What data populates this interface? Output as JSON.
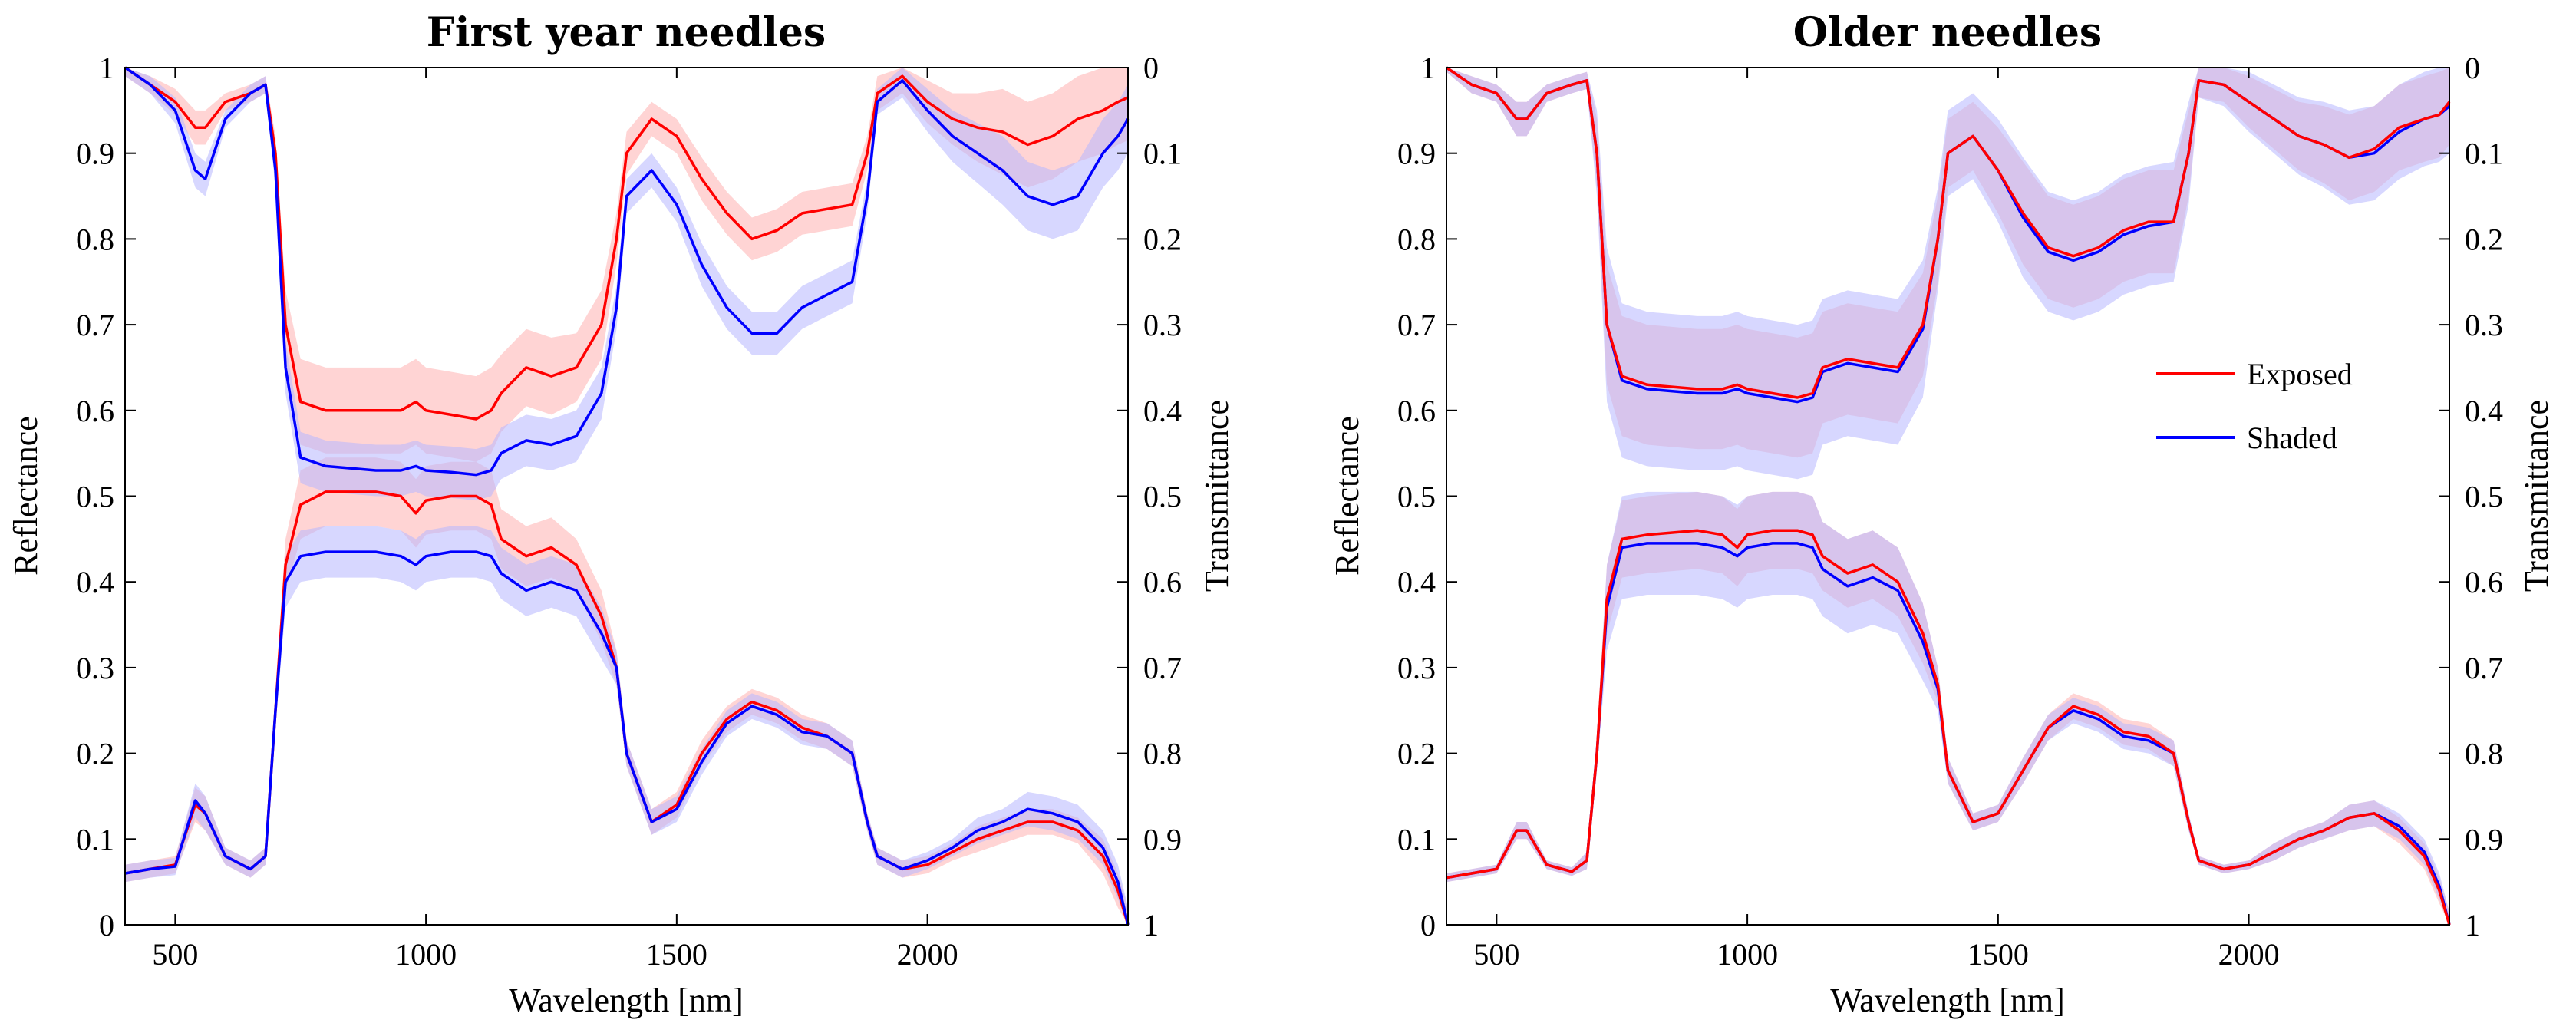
{
  "colors": {
    "exposed_line": "#ff0000",
    "shaded_line": "#0000ff",
    "exposed_band": "#ffb0b0",
    "shaded_band": "#b6b6ff",
    "overlap_band": "#d8a6cc"
  },
  "legend": {
    "exposed": "Exposed",
    "shaded": "Shaded"
  },
  "chart_data": [
    {
      "type": "line",
      "title": "First year needles",
      "xlabel": "Wavelength [nm]",
      "ylabel": "Reflectance",
      "y2label": "Transmittance",
      "xlim": [
        400,
        2400
      ],
      "ylim": [
        0,
        1
      ],
      "y2lim": [
        1,
        0
      ],
      "xticks": [
        "500",
        "1000",
        "1500",
        "2000"
      ],
      "yticks": [
        "0",
        "0.1",
        "0.2",
        "0.3",
        "0.4",
        "0.5",
        "0.6",
        "0.7",
        "0.8",
        "0.9",
        "1"
      ],
      "y2ticks": [
        "1",
        "0.9",
        "0.8",
        "0.7",
        "0.6",
        "0.5",
        "0.4",
        "0.3",
        "0.2",
        "0.1",
        "0"
      ],
      "x": [
        400,
        450,
        500,
        540,
        560,
        600,
        650,
        680,
        700,
        720,
        750,
        800,
        900,
        950,
        980,
        1000,
        1050,
        1100,
        1130,
        1150,
        1200,
        1250,
        1300,
        1350,
        1380,
        1400,
        1450,
        1500,
        1550,
        1600,
        1650,
        1700,
        1750,
        1800,
        1850,
        1880,
        1900,
        1950,
        2000,
        2050,
        2100,
        2150,
        2200,
        2250,
        2300,
        2350,
        2380,
        2400
      ],
      "series": [
        {
          "name": "Exposed reflectance",
          "values": [
            0.06,
            0.065,
            0.07,
            0.14,
            0.13,
            0.08,
            0.065,
            0.08,
            0.25,
            0.42,
            0.49,
            0.505,
            0.505,
            0.5,
            0.48,
            0.495,
            0.5,
            0.5,
            0.49,
            0.45,
            0.43,
            0.44,
            0.42,
            0.36,
            0.3,
            0.2,
            0.12,
            0.14,
            0.2,
            0.24,
            0.26,
            0.25,
            0.23,
            0.22,
            0.2,
            0.12,
            0.08,
            0.065,
            0.07,
            0.085,
            0.1,
            0.11,
            0.12,
            0.12,
            0.11,
            0.08,
            0.04,
            0.0
          ],
          "band": [
            0.01,
            0.01,
            0.01,
            0.02,
            0.02,
            0.01,
            0.01,
            0.01,
            0.02,
            0.03,
            0.04,
            0.04,
            0.04,
            0.04,
            0.04,
            0.04,
            0.04,
            0.04,
            0.04,
            0.035,
            0.035,
            0.035,
            0.03,
            0.03,
            0.02,
            0.015,
            0.015,
            0.015,
            0.015,
            0.015,
            0.015,
            0.015,
            0.015,
            0.015,
            0.015,
            0.01,
            0.01,
            0.01,
            0.01,
            0.01,
            0.015,
            0.015,
            0.015,
            0.015,
            0.015,
            0.02,
            0.02,
            0.02
          ]
        },
        {
          "name": "Shaded reflectance",
          "values": [
            0.06,
            0.065,
            0.068,
            0.145,
            0.13,
            0.08,
            0.065,
            0.08,
            0.25,
            0.4,
            0.43,
            0.435,
            0.435,
            0.43,
            0.42,
            0.43,
            0.435,
            0.435,
            0.43,
            0.41,
            0.39,
            0.4,
            0.39,
            0.34,
            0.3,
            0.2,
            0.12,
            0.135,
            0.19,
            0.235,
            0.255,
            0.245,
            0.225,
            0.22,
            0.2,
            0.12,
            0.08,
            0.065,
            0.075,
            0.09,
            0.11,
            0.12,
            0.135,
            0.13,
            0.12,
            0.09,
            0.05,
            0.0
          ],
          "band": [
            0.01,
            0.01,
            0.01,
            0.02,
            0.02,
            0.01,
            0.01,
            0.01,
            0.02,
            0.03,
            0.03,
            0.03,
            0.03,
            0.03,
            0.03,
            0.03,
            0.03,
            0.03,
            0.03,
            0.03,
            0.03,
            0.03,
            0.03,
            0.03,
            0.02,
            0.015,
            0.015,
            0.015,
            0.015,
            0.015,
            0.015,
            0.015,
            0.015,
            0.015,
            0.015,
            0.01,
            0.01,
            0.01,
            0.01,
            0.01,
            0.015,
            0.015,
            0.02,
            0.02,
            0.02,
            0.02,
            0.02,
            0.02
          ]
        },
        {
          "name": "Exposed transmittance",
          "values": [
            0.0,
            0.02,
            0.04,
            0.07,
            0.07,
            0.04,
            0.03,
            0.02,
            0.1,
            0.3,
            0.39,
            0.4,
            0.4,
            0.4,
            0.39,
            0.4,
            0.405,
            0.41,
            0.4,
            0.38,
            0.35,
            0.36,
            0.35,
            0.3,
            0.2,
            0.1,
            0.06,
            0.08,
            0.13,
            0.17,
            0.2,
            0.19,
            0.17,
            0.165,
            0.16,
            0.1,
            0.03,
            0.01,
            0.04,
            0.06,
            0.07,
            0.075,
            0.09,
            0.08,
            0.06,
            0.05,
            0.04,
            0.035
          ],
          "band": [
            0.01,
            0.01,
            0.015,
            0.02,
            0.02,
            0.01,
            0.01,
            0.01,
            0.02,
            0.04,
            0.05,
            0.05,
            0.05,
            0.05,
            0.05,
            0.05,
            0.05,
            0.05,
            0.05,
            0.045,
            0.045,
            0.045,
            0.04,
            0.04,
            0.03,
            0.025,
            0.02,
            0.02,
            0.025,
            0.025,
            0.025,
            0.025,
            0.025,
            0.025,
            0.025,
            0.02,
            0.02,
            0.02,
            0.025,
            0.03,
            0.04,
            0.05,
            0.05,
            0.05,
            0.05,
            0.05,
            0.05,
            0.05
          ]
        },
        {
          "name": "Shaded transmittance",
          "values": [
            0.0,
            0.02,
            0.05,
            0.12,
            0.13,
            0.06,
            0.03,
            0.02,
            0.12,
            0.35,
            0.455,
            0.465,
            0.47,
            0.47,
            0.465,
            0.47,
            0.472,
            0.475,
            0.47,
            0.45,
            0.435,
            0.44,
            0.43,
            0.38,
            0.28,
            0.15,
            0.12,
            0.16,
            0.23,
            0.28,
            0.31,
            0.31,
            0.28,
            0.265,
            0.25,
            0.15,
            0.04,
            0.015,
            0.05,
            0.08,
            0.1,
            0.12,
            0.15,
            0.16,
            0.15,
            0.1,
            0.08,
            0.06
          ],
          "band": [
            0.01,
            0.01,
            0.015,
            0.02,
            0.02,
            0.01,
            0.01,
            0.01,
            0.02,
            0.03,
            0.03,
            0.03,
            0.03,
            0.03,
            0.03,
            0.03,
            0.03,
            0.03,
            0.03,
            0.03,
            0.03,
            0.03,
            0.03,
            0.03,
            0.025,
            0.02,
            0.02,
            0.02,
            0.025,
            0.025,
            0.025,
            0.025,
            0.025,
            0.025,
            0.025,
            0.02,
            0.015,
            0.02,
            0.025,
            0.03,
            0.035,
            0.04,
            0.04,
            0.04,
            0.04,
            0.04,
            0.04,
            0.04
          ]
        }
      ]
    },
    {
      "type": "line",
      "title": "Older needles",
      "xlabel": "Wavelength [nm]",
      "ylabel": "Reflectance",
      "y2label": "Transmittance",
      "xlim": [
        400,
        2400
      ],
      "ylim": [
        0,
        1
      ],
      "y2lim": [
        1,
        0
      ],
      "xticks": [
        "500",
        "1000",
        "1500",
        "2000"
      ],
      "yticks": [
        "0",
        "0.1",
        "0.2",
        "0.3",
        "0.4",
        "0.5",
        "0.6",
        "0.7",
        "0.8",
        "0.9",
        "1"
      ],
      "y2ticks": [
        "1",
        "0.9",
        "0.8",
        "0.7",
        "0.6",
        "0.5",
        "0.4",
        "0.3",
        "0.2",
        "0.1",
        "0"
      ],
      "x": [
        400,
        450,
        500,
        540,
        560,
        600,
        650,
        680,
        700,
        720,
        750,
        800,
        900,
        950,
        980,
        1000,
        1050,
        1100,
        1130,
        1150,
        1200,
        1250,
        1300,
        1350,
        1380,
        1400,
        1450,
        1500,
        1550,
        1600,
        1650,
        1700,
        1750,
        1800,
        1850,
        1880,
        1900,
        1950,
        2000,
        2050,
        2100,
        2150,
        2200,
        2250,
        2300,
        2350,
        2380,
        2400
      ],
      "series": [
        {
          "name": "Exposed reflectance",
          "values": [
            0.055,
            0.06,
            0.065,
            0.11,
            0.11,
            0.07,
            0.062,
            0.075,
            0.2,
            0.38,
            0.45,
            0.455,
            0.46,
            0.455,
            0.44,
            0.455,
            0.46,
            0.46,
            0.455,
            0.43,
            0.41,
            0.42,
            0.4,
            0.34,
            0.28,
            0.18,
            0.12,
            0.13,
            0.18,
            0.23,
            0.255,
            0.245,
            0.225,
            0.22,
            0.2,
            0.12,
            0.075,
            0.065,
            0.07,
            0.085,
            0.1,
            0.11,
            0.125,
            0.13,
            0.11,
            0.08,
            0.04,
            0.0
          ],
          "band": [
            0.005,
            0.005,
            0.005,
            0.01,
            0.01,
            0.005,
            0.005,
            0.01,
            0.02,
            0.04,
            0.045,
            0.045,
            0.045,
            0.045,
            0.045,
            0.045,
            0.045,
            0.045,
            0.045,
            0.04,
            0.04,
            0.04,
            0.04,
            0.035,
            0.02,
            0.015,
            0.01,
            0.01,
            0.015,
            0.015,
            0.015,
            0.015,
            0.015,
            0.015,
            0.015,
            0.01,
            0.005,
            0.005,
            0.005,
            0.01,
            0.01,
            0.01,
            0.015,
            0.015,
            0.015,
            0.015,
            0.015,
            0.015
          ]
        },
        {
          "name": "Shaded reflectance",
          "values": [
            0.055,
            0.06,
            0.065,
            0.11,
            0.11,
            0.07,
            0.062,
            0.075,
            0.2,
            0.37,
            0.44,
            0.445,
            0.445,
            0.44,
            0.43,
            0.44,
            0.445,
            0.445,
            0.44,
            0.415,
            0.395,
            0.405,
            0.39,
            0.33,
            0.275,
            0.18,
            0.12,
            0.13,
            0.18,
            0.23,
            0.25,
            0.24,
            0.22,
            0.215,
            0.2,
            0.12,
            0.075,
            0.065,
            0.07,
            0.085,
            0.1,
            0.11,
            0.125,
            0.13,
            0.115,
            0.085,
            0.045,
            0.0
          ],
          "band": [
            0.005,
            0.005,
            0.005,
            0.01,
            0.01,
            0.005,
            0.005,
            0.01,
            0.02,
            0.05,
            0.06,
            0.06,
            0.06,
            0.06,
            0.06,
            0.06,
            0.06,
            0.06,
            0.06,
            0.055,
            0.055,
            0.055,
            0.05,
            0.045,
            0.025,
            0.015,
            0.01,
            0.01,
            0.015,
            0.015,
            0.015,
            0.015,
            0.015,
            0.015,
            0.015,
            0.01,
            0.005,
            0.005,
            0.005,
            0.01,
            0.01,
            0.01,
            0.015,
            0.015,
            0.015,
            0.015,
            0.015,
            0.015
          ]
        },
        {
          "name": "Exposed transmittance",
          "values": [
            0.0,
            0.02,
            0.03,
            0.06,
            0.06,
            0.03,
            0.02,
            0.015,
            0.1,
            0.3,
            0.36,
            0.37,
            0.375,
            0.375,
            0.37,
            0.375,
            0.38,
            0.385,
            0.38,
            0.35,
            0.34,
            0.345,
            0.35,
            0.3,
            0.2,
            0.1,
            0.08,
            0.12,
            0.17,
            0.21,
            0.22,
            0.21,
            0.19,
            0.18,
            0.18,
            0.1,
            0.015,
            0.02,
            0.04,
            0.06,
            0.08,
            0.09,
            0.105,
            0.095,
            0.07,
            0.06,
            0.055,
            0.04
          ],
          "band": [
            0.005,
            0.01,
            0.01,
            0.02,
            0.02,
            0.01,
            0.01,
            0.01,
            0.04,
            0.07,
            0.07,
            0.07,
            0.07,
            0.07,
            0.07,
            0.07,
            0.07,
            0.07,
            0.07,
            0.065,
            0.065,
            0.065,
            0.065,
            0.06,
            0.05,
            0.04,
            0.04,
            0.05,
            0.06,
            0.06,
            0.06,
            0.06,
            0.06,
            0.06,
            0.06,
            0.05,
            0.02,
            0.02,
            0.03,
            0.035,
            0.04,
            0.045,
            0.05,
            0.05,
            0.05,
            0.05,
            0.05,
            0.05
          ]
        },
        {
          "name": "Shaded transmittance",
          "values": [
            0.0,
            0.02,
            0.03,
            0.06,
            0.06,
            0.03,
            0.02,
            0.015,
            0.1,
            0.3,
            0.365,
            0.375,
            0.38,
            0.38,
            0.375,
            0.38,
            0.385,
            0.39,
            0.385,
            0.355,
            0.345,
            0.35,
            0.355,
            0.305,
            0.2,
            0.1,
            0.08,
            0.12,
            0.175,
            0.215,
            0.225,
            0.215,
            0.195,
            0.185,
            0.18,
            0.1,
            0.015,
            0.02,
            0.04,
            0.06,
            0.08,
            0.09,
            0.105,
            0.1,
            0.075,
            0.06,
            0.055,
            0.045
          ],
          "band": [
            0.005,
            0.01,
            0.01,
            0.02,
            0.02,
            0.01,
            0.01,
            0.01,
            0.05,
            0.09,
            0.09,
            0.09,
            0.09,
            0.09,
            0.09,
            0.09,
            0.09,
            0.09,
            0.09,
            0.085,
            0.085,
            0.085,
            0.085,
            0.08,
            0.06,
            0.05,
            0.05,
            0.06,
            0.07,
            0.07,
            0.07,
            0.07,
            0.07,
            0.07,
            0.07,
            0.06,
            0.02,
            0.025,
            0.035,
            0.04,
            0.045,
            0.05,
            0.055,
            0.055,
            0.055,
            0.055,
            0.055,
            0.055
          ]
        }
      ]
    }
  ]
}
